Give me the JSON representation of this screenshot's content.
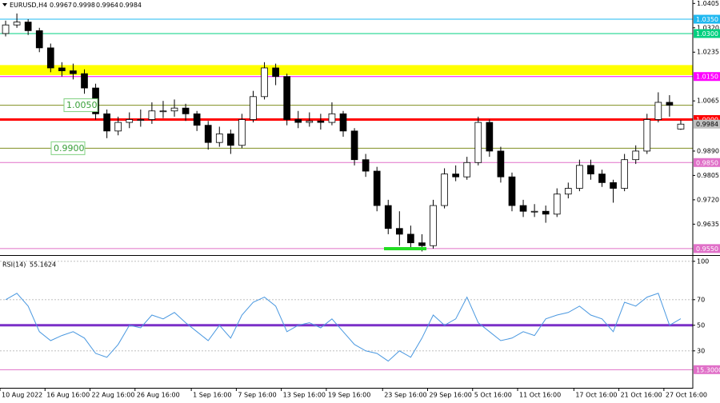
{
  "chart_data": [
    {
      "type": "candlestick",
      "title": "EURUSD,H4",
      "open": [
        1.03,
        1.033,
        1.034,
        1.031,
        1.025,
        1.018,
        1.017,
        1.016,
        1.011,
        1.002,
        0.996,
        0.999,
        1.0,
        1.0,
        1.003,
        1.003,
        1.004,
        1.002,
        0.998,
        0.992,
        0.995,
        0.991,
        1.0,
        1.008,
        1.018,
        1.015,
        1.0,
        0.999,
        0.9995,
        0.999,
        1.002,
        0.996,
        0.986,
        0.982,
        0.97,
        0.962,
        0.96,
        0.957,
        0.956,
        0.97,
        0.981,
        0.98,
        0.985,
        0.999,
        0.989,
        0.98,
        0.97,
        0.968,
        0.968,
        0.967,
        0.974,
        0.976,
        0.984,
        0.981,
        0.978,
        0.976,
        0.986,
        0.989,
        1.0,
        1.006,
        0.9967
      ],
      "high": [
        1.0345,
        1.037,
        1.035,
        1.032,
        1.0265,
        1.02,
        1.0195,
        1.0175,
        1.0125,
        1.0035,
        1.001,
        1.0025,
        1.0035,
        1.006,
        1.0065,
        1.007,
        1.0055,
        1.003,
        0.9995,
        0.9975,
        0.9965,
        1.002,
        1.01,
        1.02,
        1.0195,
        1.016,
        1.003,
        1.0025,
        1.002,
        1.006,
        1.003,
        0.997,
        0.988,
        0.9835,
        0.972,
        0.968,
        0.963,
        0.96,
        0.972,
        0.983,
        0.984,
        0.987,
        1.001,
        1.0,
        0.9905,
        0.9815,
        0.972,
        0.9705,
        0.97,
        0.976,
        0.978,
        0.986,
        0.986,
        0.9825,
        0.979,
        0.988,
        0.991,
        1.002,
        1.0095,
        1.0085,
        0.9998
      ],
      "low": [
        1.029,
        1.032,
        1.0295,
        1.0235,
        1.0165,
        1.015,
        1.014,
        1.009,
        1.0,
        0.9935,
        0.9945,
        0.997,
        0.9975,
        0.9985,
        1.0005,
        1.001,
        0.9995,
        0.996,
        0.9895,
        0.9905,
        0.988,
        0.99,
        0.999,
        1.007,
        1.012,
        0.998,
        0.997,
        0.9975,
        0.9965,
        0.998,
        0.994,
        0.984,
        0.98,
        0.968,
        0.96,
        0.956,
        0.9545,
        0.954,
        0.955,
        0.969,
        0.9785,
        0.979,
        0.984,
        0.987,
        0.978,
        0.968,
        0.966,
        0.966,
        0.964,
        0.966,
        0.9725,
        0.975,
        0.979,
        0.9765,
        0.971,
        0.975,
        0.9845,
        0.988,
        0.999,
        1.001,
        0.9964
      ],
      "close": [
        1.033,
        1.034,
        1.031,
        1.025,
        1.018,
        1.017,
        1.016,
        1.011,
        1.002,
        0.996,
        0.999,
        1.0,
        1.0,
        1.003,
        1.003,
        1.004,
        1.002,
        0.998,
        0.992,
        0.995,
        0.991,
        1.0,
        1.008,
        1.018,
        1.015,
        1.0,
        0.999,
        0.9995,
        0.999,
        1.002,
        0.996,
        0.986,
        0.982,
        0.97,
        0.962,
        0.96,
        0.957,
        0.956,
        0.97,
        0.981,
        0.98,
        0.985,
        0.999,
        0.989,
        0.98,
        0.97,
        0.968,
        0.968,
        0.967,
        0.974,
        0.976,
        0.984,
        0.981,
        0.978,
        0.976,
        0.986,
        0.989,
        1.0,
        1.006,
        1.005,
        0.9984
      ],
      "up_color": "#ffffff",
      "down_color": "#000000",
      "wick_color": "#000000",
      "ylim": [
        0.953,
        1.0417
      ],
      "yticks": [
        1.0405,
        {
          "value": 1.032,
          "label": "1.0320"
        },
        1.0235,
        1.0065,
        {
          "value": 0.989,
          "label": "0.9890"
        },
        0.9805,
        {
          "value": 0.972,
          "label": "0.9720"
        },
        0.9635
      ],
      "grid": false,
      "zones": [
        {
          "from": 1.0155,
          "to": 1.019,
          "color": "#ffff00"
        }
      ],
      "levels": [
        {
          "value": 1.035,
          "label": "1.0350",
          "color": "#1fb8f0",
          "width": 1,
          "label_position": "axis"
        },
        {
          "value": 1.03,
          "label": "1.0300",
          "color": "#00d080",
          "width": 1,
          "label_position": "axis"
        },
        {
          "value": 1.015,
          "label": "1.0150",
          "color": "#ff00ff",
          "width": 1,
          "label_position": "axis"
        },
        {
          "value": 1.005,
          "label": "1.0050",
          "color": "#7f8f20",
          "width": 1,
          "label_position": "chart"
        },
        {
          "value": 1,
          "label": "1.0000",
          "color": "#ff0000",
          "width": 3,
          "label_position": "axis"
        },
        {
          "value": 0.99,
          "label": "0.9900",
          "color": "#7f8f20",
          "width": 1,
          "label_position": "chart"
        },
        {
          "value": 0.985,
          "label": "0.9850",
          "color": "#e070c8",
          "width": 1,
          "label_position": "axis"
        },
        {
          "value": 0.955,
          "label": "0.9550",
          "color": "#e070c8",
          "width": 1,
          "label_position": "axis"
        }
      ]
    },
    {
      "type": "line",
      "title": "RSI(14)",
      "categories": [
        "10 Aug 2022",
        null,
        null,
        null,
        "16 Aug 16:00",
        null,
        null,
        null,
        "22 Aug 16:00",
        null,
        null,
        null,
        "26 Aug 16:00",
        null,
        null,
        null,
        null,
        "1 Sep 16:00",
        null,
        null,
        null,
        "7 Sep 16:00",
        null,
        null,
        null,
        "13 Sep 16:00",
        null,
        null,
        null,
        "19 Sep 16:00",
        null,
        null,
        null,
        null,
        "23 Sep 16:00",
        null,
        null,
        null,
        "29 Sep 16:00",
        null,
        null,
        null,
        "5 Oct 16:00",
        null,
        null,
        null,
        "11 Oct 16:00",
        null,
        null,
        null,
        null,
        "17 Oct 16:00",
        null,
        null,
        null,
        "21 Oct 16:00",
        null,
        null,
        null,
        "27 Oct 16:00",
        null
      ],
      "values": [
        70,
        75,
        65,
        45,
        38,
        42,
        45,
        40,
        28,
        25,
        35,
        50,
        48,
        58,
        55,
        60,
        52,
        45,
        38,
        50,
        40,
        58,
        68,
        72,
        65,
        45,
        50,
        52,
        48,
        55,
        45,
        35,
        30,
        28,
        22,
        30,
        25,
        40,
        58,
        50,
        55,
        72,
        52,
        45,
        38,
        40,
        45,
        42,
        55,
        58,
        60,
        65,
        58,
        55,
        45,
        68,
        65,
        72,
        75,
        50,
        55.1624
      ],
      "color": "#4a98e0",
      "ylim": [
        3,
        103
      ],
      "yticks": [
        100,
        70,
        50,
        30
      ],
      "grid": true,
      "levels": [
        {
          "value": 50,
          "color": "#7a2fc8",
          "width": 3
        },
        {
          "value": 15.3,
          "label": "15.3000",
          "color": "#e070c8",
          "width": 1,
          "label_position": "axis"
        }
      ]
    }
  ]
}
